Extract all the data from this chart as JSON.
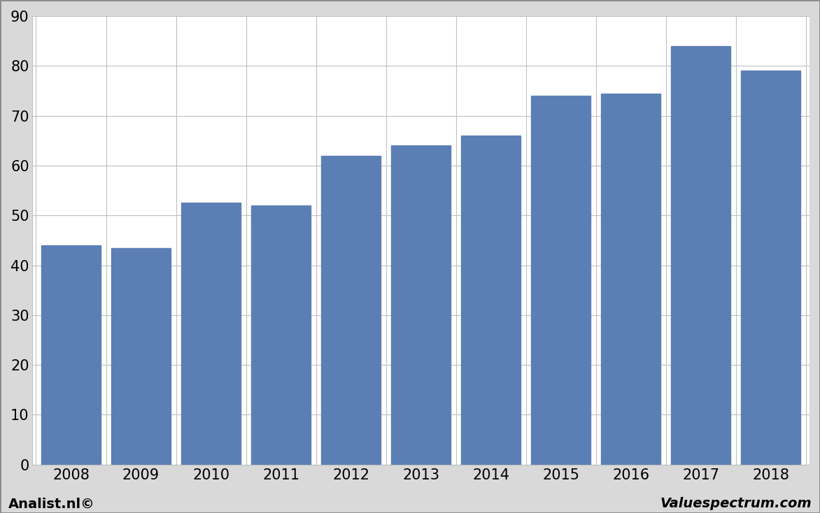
{
  "categories": [
    "2008",
    "2009",
    "2010",
    "2011",
    "2012",
    "2013",
    "2014",
    "2015",
    "2016",
    "2017",
    "2018"
  ],
  "values": [
    44.0,
    43.5,
    52.5,
    52.0,
    62.0,
    64.0,
    66.0,
    74.0,
    74.5,
    84.0,
    79.0
  ],
  "bar_color": "#5b7fb5",
  "background_color": "#d9d9d9",
  "plot_bg_color": "#ffffff",
  "ylim": [
    0,
    90
  ],
  "yticks": [
    0,
    10,
    20,
    30,
    40,
    50,
    60,
    70,
    80,
    90
  ],
  "grid_color": "#c0c0c0",
  "footer_left": "Analist.nl©",
  "footer_right": "Valuespectrum.com",
  "footer_fontsize": 14,
  "bar_width": 0.85,
  "tick_fontsize": 15
}
